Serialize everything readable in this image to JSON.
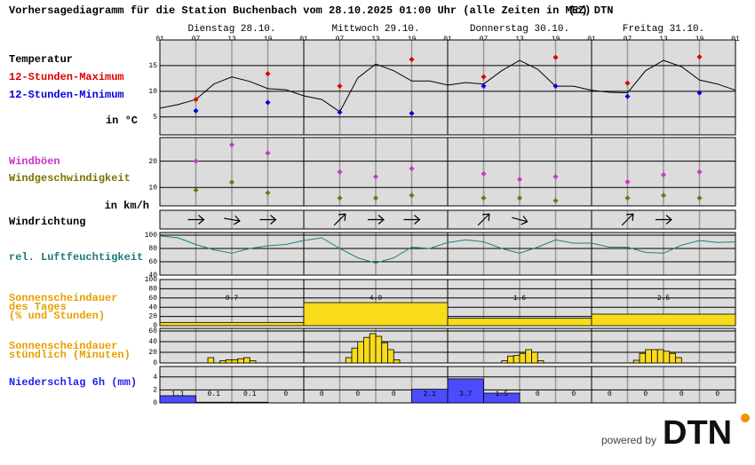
{
  "header": {
    "title": "Vorhersagediagramm für die Station Buchenbach vom 28.10.2025 01:00 Uhr (alle Zeiten in MEZ)",
    "credit": "(c) DTN"
  },
  "x_axis": {
    "xlim": [
      0,
      96
    ],
    "xticks": [
      {
        "value": 0,
        "label": "01"
      },
      {
        "value": 6,
        "label": "07"
      },
      {
        "value": 12,
        "label": "13"
      },
      {
        "value": 18,
        "label": "19"
      },
      {
        "value": 24,
        "label": "01"
      },
      {
        "value": 30,
        "label": "07"
      },
      {
        "value": 36,
        "label": "13"
      },
      {
        "value": 42,
        "label": "19"
      },
      {
        "value": 48,
        "label": "01"
      },
      {
        "value": 54,
        "label": "07"
      },
      {
        "value": 60,
        "label": "13"
      },
      {
        "value": 66,
        "label": "19"
      },
      {
        "value": 72,
        "label": "01"
      },
      {
        "value": 78,
        "label": "07"
      },
      {
        "value": 84,
        "label": "13"
      },
      {
        "value": 90,
        "label": "19"
      },
      {
        "value": 96,
        "label": "01"
      }
    ],
    "days": [
      "Dienstag 28.10.",
      "Mittwoch 29.10.",
      "Donnerstag 30.10.",
      "Freitag 31.10."
    ]
  },
  "chart_data": [
    {
      "type": "line",
      "title": "Temperatur",
      "ylabel": "in °C",
      "ylim": [
        1.5,
        20
      ],
      "yticks": [
        5,
        10,
        15
      ],
      "series": [
        {
          "type": "line",
          "color": "#000000",
          "x": [
            0,
            3,
            6,
            9,
            12,
            15,
            18,
            21,
            24,
            27,
            30,
            33,
            36,
            39,
            42,
            45,
            48,
            51,
            54,
            57,
            60,
            63,
            66,
            69,
            72,
            75,
            78,
            81,
            84,
            87,
            90,
            93,
            96
          ],
          "values": [
            6.7,
            7.4,
            8.4,
            11.4,
            12.8,
            11.9,
            10.5,
            10.3,
            9.1,
            8.4,
            6,
            12.6,
            15.3,
            14,
            12,
            12,
            11.2,
            11.7,
            11.4,
            14,
            16,
            14.3,
            11,
            11,
            10.2,
            9.8,
            9.7,
            14,
            16,
            14.8,
            12.2,
            11.4,
            10.2
          ]
        },
        {
          "type": "scatter",
          "name": "12-Stunden-Maximum",
          "color": "#dd0000",
          "x": [
            6,
            18,
            30,
            42,
            54,
            66,
            78,
            90
          ],
          "values": [
            8.4,
            13.4,
            11,
            16.2,
            12.8,
            16.6,
            11.6,
            16.7
          ]
        },
        {
          "type": "scatter",
          "name": "12-Stunden-Minimum",
          "color": "#0000dd",
          "x": [
            6,
            18,
            30,
            42,
            54,
            66,
            78,
            90
          ],
          "values": [
            6.2,
            7.8,
            5.9,
            5.7,
            11,
            11,
            9,
            9.7
          ]
        }
      ]
    },
    {
      "type": "scatter",
      "ylabel": "in km/h",
      "ylim": [
        3,
        29
      ],
      "yticks": [
        10,
        20
      ],
      "series": [
        {
          "name": "Windböen",
          "color": "#cc33cc",
          "x": [
            6,
            12,
            18,
            30,
            36,
            42,
            54,
            60,
            66,
            78,
            84,
            90
          ],
          "values": [
            20,
            26.2,
            23.1,
            15.9,
            14.1,
            17.2,
            15.2,
            13.1,
            14.1,
            12.1,
            14.8,
            15.9
          ]
        },
        {
          "name": "Windgeschwindigkeit",
          "color": "#807000",
          "x": [
            6,
            12,
            18,
            30,
            36,
            42,
            54,
            60,
            66,
            78,
            84,
            90
          ],
          "values": [
            9,
            12,
            8,
            6,
            6,
            7,
            6,
            6,
            5,
            6,
            7,
            6
          ]
        }
      ]
    },
    {
      "type": "wind_direction",
      "title": "Windrichtung",
      "x": [
        6,
        12,
        18,
        30,
        36,
        42,
        54,
        60,
        66,
        78,
        84,
        90
      ],
      "values": [
        270,
        280,
        270,
        225,
        270,
        270,
        225,
        285,
        null,
        225,
        270,
        null
      ]
    },
    {
      "type": "line",
      "title": "rel. Luftfeuchtigkeit",
      "title_color": "#1a7a7a",
      "ylim": [
        40,
        104
      ],
      "yticks": [
        40,
        60,
        80,
        100
      ],
      "series": [
        {
          "type": "line",
          "color": "#1a8080",
          "x": [
            0,
            3,
            6,
            9,
            12,
            15,
            18,
            21,
            24,
            27,
            30,
            33,
            36,
            39,
            42,
            45,
            48,
            51,
            54,
            57,
            60,
            63,
            66,
            69,
            72,
            75,
            78,
            81,
            84,
            87,
            90,
            93,
            96
          ],
          "values": [
            99,
            96,
            86,
            78,
            73,
            80,
            84,
            86,
            92,
            96,
            80,
            66,
            58,
            66,
            82,
            80,
            89,
            93,
            90,
            80,
            73,
            82,
            93,
            88,
            88,
            82,
            82,
            74,
            73,
            85,
            92,
            89,
            90
          ]
        }
      ]
    },
    {
      "type": "bar",
      "title": [
        "Sonnenscheindauer",
        "des Tages",
        "(% und Stunden)"
      ],
      "title_color": "#e8a000",
      "color": "#f8dc1c",
      "ylim": [
        0,
        100
      ],
      "yticks": [
        0,
        20,
        40,
        60,
        80,
        100
      ],
      "x": [
        0,
        24,
        48,
        72
      ],
      "values": [
        7,
        50,
        16,
        25
      ],
      "hours": [
        0.7,
        4.9,
        1.6,
        2.5
      ]
    },
    {
      "type": "bar",
      "title": [
        "Sonnenscheindauer",
        "stündlich (Minuten)"
      ],
      "title_color": "#e8a000",
      "color": "#f8dc1c",
      "ylim": [
        0,
        65
      ],
      "yticks": [
        0,
        20,
        40,
        60
      ],
      "x": [
        8,
        10,
        11,
        12,
        13,
        14,
        15,
        31,
        32,
        33,
        34,
        35,
        36,
        37,
        38,
        39,
        57,
        58,
        59,
        60,
        61,
        62,
        63,
        79,
        80,
        81,
        82,
        83,
        84,
        85,
        86
      ],
      "values": [
        10,
        4,
        6,
        6,
        8,
        10,
        4,
        10,
        28,
        40,
        48,
        55,
        50,
        38,
        25,
        6,
        4,
        13,
        14,
        18,
        25,
        20,
        4,
        5,
        18,
        25,
        25,
        25,
        22,
        18,
        10
      ]
    },
    {
      "type": "bar",
      "title": "Niederschlag 6h (mm)",
      "title_color": "#2222ee",
      "color": "#4b4bff",
      "labels": true,
      "ylim": [
        0,
        5.6
      ],
      "yticks": [
        0,
        2,
        4
      ],
      "x": [
        0,
        6,
        12,
        18,
        24,
        30,
        36,
        42,
        48,
        54,
        60,
        66,
        72,
        78,
        84,
        90
      ],
      "values": [
        1.1,
        0.1,
        0.1,
        0,
        0,
        0,
        0,
        2.1,
        3.7,
        1.5,
        0,
        0,
        0,
        0,
        0,
        0
      ]
    }
  ],
  "footer": {
    "powered": "powered by",
    "logo": "DTN"
  }
}
